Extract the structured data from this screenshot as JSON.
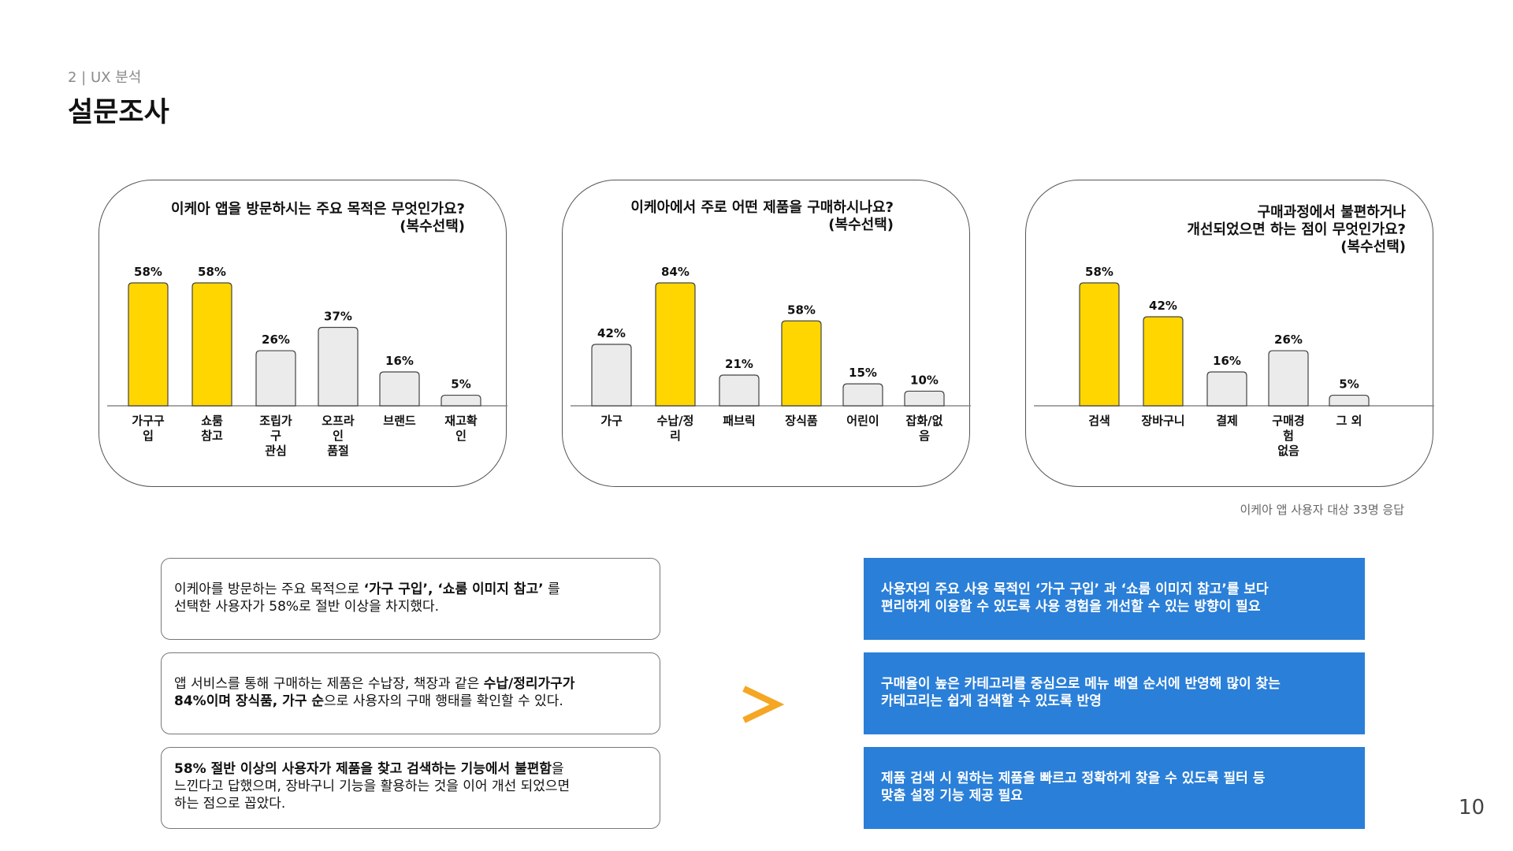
{
  "header": {
    "section": "2 | UX 분석",
    "title": "설문조사"
  },
  "colors": {
    "highlight": "#FFD600",
    "normal": "#EBEBEB",
    "action_box": "#2A7FD8",
    "arrow": "#F5A623"
  },
  "chart_data": [
    {
      "type": "bar",
      "title": "이케아 앱을 방문하시는 주요 목적은 무엇인가요?\n(복수선택)",
      "categories": [
        "가구구\n입",
        "쇼룸\n참고",
        "조립가\n구\n관심",
        "오프라\n인\n품절",
        "브랜드",
        "재고확\n인"
      ],
      "values": [
        58,
        58,
        26,
        37,
        16,
        5
      ],
      "highlight": [
        true,
        true,
        false,
        false,
        false,
        false
      ],
      "unit": "%"
    },
    {
      "type": "bar",
      "title": "이케아에서 주로 어떤 제품을 구매하시나요?\n(복수선택)",
      "categories": [
        "가구",
        "수납/정\n리",
        "패브릭",
        "장식품",
        "어린이",
        "잡화/없\n음"
      ],
      "values": [
        42,
        84,
        21,
        58,
        15,
        10
      ],
      "highlight": [
        false,
        true,
        false,
        true,
        false,
        false
      ],
      "unit": "%"
    },
    {
      "type": "bar",
      "title": "구매과정에서 불편하거나\n개선되었으면 하는 점이 무엇인가요?\n(복수선택)",
      "categories": [
        "검색",
        "장바구니",
        "결제",
        "구매경\n험\n없음",
        "그 외"
      ],
      "values": [
        58,
        42,
        16,
        26,
        5
      ],
      "highlight": [
        true,
        true,
        false,
        false,
        false
      ],
      "unit": "%"
    }
  ],
  "source_note": "이케아 앱 사용자 대상 33명 응답",
  "findings": [
    {
      "t1": "이케아를 방문하는 주요 목적으로 ",
      "b1": "‘가구 구입’, ‘쇼룸 이미지 참고’",
      "t2": " 를\n선택한 사용자가 58%로 절반 이상을 차지했다.",
      "b2": "",
      "t3": ""
    },
    {
      "t1": "앱 서비스를 통해 구매하는 제품은 수납장, 책장과 같은 ",
      "b1": "수납/정리가구가\n84%이며 장식품, 가구 순",
      "t2": "으로 사용자의 구매 행태를 확인할 수 있다.",
      "b2": "",
      "t3": ""
    },
    {
      "t1": "",
      "b1": "58% 절반 이상의 사용자가 제품을 찾고 검색하는 기능에서 불편함",
      "t2": "을\n느낀다고 답했으며, 장바구니 기능을 활용하는 것을 이어 개선 되었으면\n하는 점으로 꼽았다.",
      "b2": "",
      "t3": ""
    }
  ],
  "actions": [
    "사용자의 주요 사용 목적인 ‘가구 구입’ 과 ‘쇼룸 이미지 참고’를 보다\n편리하게 이용할 수 있도록 사용 경험을 개선할 수 있는 방향이 필요",
    "구매율이 높은 카테고리를 중심으로 메뉴 배열 순서에 반영해 많이 찾는\n카테고리는 쉽게 검색할 수 있도록 반영",
    "제품 검색 시 원하는 제품을 빠르고 정확하게 찾을 수 있도록 필터 등\n맞춤 설정 기능 제공 필요"
  ],
  "page_number": "10"
}
